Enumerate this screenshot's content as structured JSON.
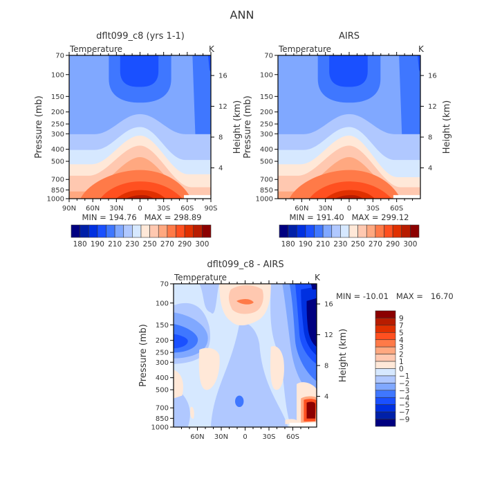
{
  "title": "ANN",
  "colors": [
    "#000080",
    "#0020a8",
    "#0030e0",
    "#1a50ff",
    "#3f77ff",
    "#80a8ff",
    "#b0c8ff",
    "#d6e8ff",
    "#ffe8d8",
    "#ffc8b0",
    "#ffa880",
    "#ff7a48",
    "#ff5020",
    "#e03000",
    "#b81c00",
    "#8b0000"
  ],
  "chart_data": [
    {
      "type": "heatmap",
      "title": "dflt099_c8 (yrs 1-1)",
      "subtitle": "Temperature",
      "units": "K",
      "ylabel": "Pressure (mb)",
      "ylabel_right": "Height (km)",
      "x_ticks": [
        "90N",
        "60N",
        "30N",
        "0",
        "30S",
        "60S",
        "90S"
      ],
      "y_ticks": [
        "70",
        "100",
        "150",
        "200",
        "250",
        "300",
        "400",
        "500",
        "700",
        "850",
        "1000"
      ],
      "y_ticks_right": [
        "4",
        "8",
        "12",
        "16"
      ],
      "ylim": [
        1000,
        70
      ],
      "y_scale": "log",
      "min": 194.76,
      "max": 298.89,
      "stats": "MIN = 194.76   MAX = 298.89",
      "colorbar_labels": [
        "180",
        "190",
        "210",
        "230",
        "250",
        "270",
        "290",
        "300"
      ],
      "colorbar_orientation": "horizontal"
    },
    {
      "type": "heatmap",
      "title": "AIRS",
      "subtitle": "Temperature",
      "units": "K",
      "ylabel": "Pressure (mb)",
      "ylabel_right": "Height (km)",
      "x_ticks": [
        "60N",
        "30N",
        "0",
        "30S",
        "60S"
      ],
      "y_ticks": [
        "70",
        "100",
        "150",
        "200",
        "250",
        "300",
        "400",
        "500",
        "700",
        "850",
        "1000"
      ],
      "y_ticks_right": [
        "4",
        "8",
        "12",
        "16"
      ],
      "ylim": [
        1000,
        70
      ],
      "y_scale": "log",
      "min": 191.4,
      "max": 299.12,
      "stats": "MIN = 191.40   MAX = 299.12",
      "colorbar_labels": [
        "180",
        "190",
        "210",
        "230",
        "250",
        "270",
        "290",
        "300"
      ],
      "colorbar_orientation": "horizontal"
    },
    {
      "type": "heatmap",
      "title": "dflt099_c8 - AIRS",
      "subtitle": "Temperature",
      "units": "K",
      "ylabel": "Pressure (mb)",
      "ylabel_right": "Height (km)",
      "x_ticks": [
        "60N",
        "30N",
        "0",
        "30S",
        "60S"
      ],
      "y_ticks": [
        "70",
        "100",
        "150",
        "200",
        "250",
        "300",
        "400",
        "500",
        "700",
        "850",
        "1000"
      ],
      "y_ticks_right": [
        "4",
        "8",
        "12",
        "16"
      ],
      "ylim": [
        1000,
        70
      ],
      "y_scale": "log",
      "min": -10.01,
      "max": 16.7,
      "stats": "MIN = -10.01   MAX =   16.70",
      "colorbar_labels": [
        "9",
        "7",
        "5",
        "4",
        "3",
        "2",
        "1",
        "0",
        "-1",
        "-2",
        "-3",
        "-4",
        "-5",
        "-7",
        "-9"
      ],
      "colorbar_orientation": "vertical"
    }
  ]
}
